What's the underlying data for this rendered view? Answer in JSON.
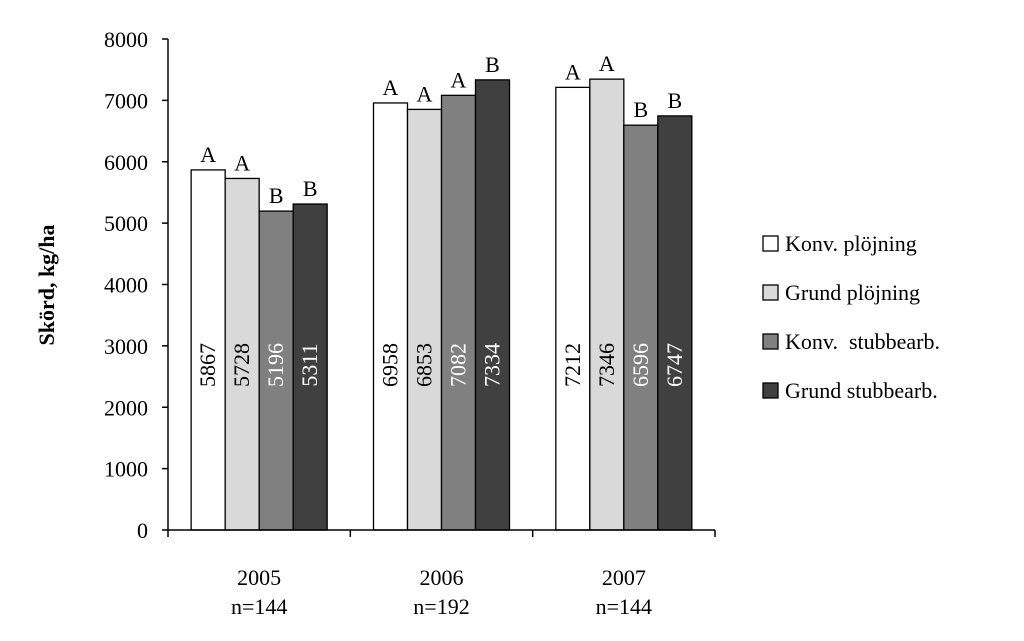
{
  "chart_data": {
    "type": "bar",
    "title": "",
    "xlabel": "",
    "ylabel": "Skörd, kg/ha",
    "ylim": [
      0,
      8000
    ],
    "yticks": [
      0,
      1000,
      2000,
      3000,
      4000,
      5000,
      6000,
      7000,
      8000
    ],
    "categories": [
      {
        "year": "2005",
        "n": "n=144"
      },
      {
        "year": "2006",
        "n": "n=192"
      },
      {
        "year": "2007",
        "n": "n=144"
      }
    ],
    "series": [
      {
        "name": "Konv. plöjning",
        "color": "#ffffff",
        "label_color": "#000000",
        "values": [
          5867,
          6958,
          7212
        ],
        "letters": [
          "A",
          "A",
          "A"
        ]
      },
      {
        "name": "Grund plöjning",
        "color": "#d9d9d9",
        "label_color": "#000000",
        "values": [
          5728,
          6853,
          7346
        ],
        "letters": [
          "A",
          "A",
          "A"
        ]
      },
      {
        "name": "Konv.  stubbearb.",
        "color": "#808080",
        "label_color": "#ffffff",
        "values": [
          5196,
          7082,
          6596
        ],
        "letters": [
          "B",
          "A",
          "B"
        ]
      },
      {
        "name": "Grund stubbearb.",
        "color": "#404040",
        "label_color": "#ffffff",
        "values": [
          5311,
          7334,
          6747
        ],
        "letters": [
          "B",
          "B",
          "B"
        ]
      }
    ],
    "legend": "right",
    "grid": false
  }
}
